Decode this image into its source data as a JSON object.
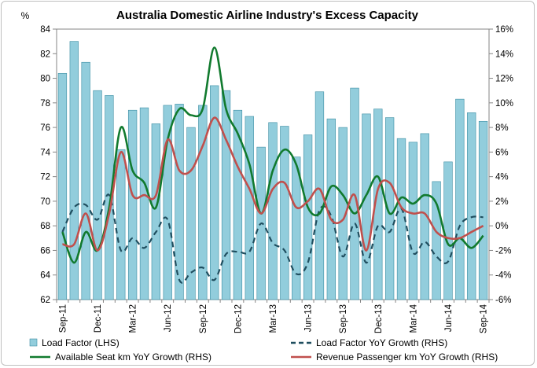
{
  "chart_data": {
    "type": "bar",
    "title": "Australia Domestic Airline Industry's Excess Capacity",
    "left_axis": {
      "unit_label": "%",
      "ylim": [
        62,
        84
      ],
      "ticks": [
        62,
        64,
        66,
        68,
        70,
        72,
        74,
        76,
        78,
        80,
        82,
        84
      ]
    },
    "right_axis": {
      "ylim": [
        -6,
        16
      ],
      "ticks": [
        "-6%",
        "-4%",
        "-2%",
        "0%",
        "2%",
        "4%",
        "6%",
        "8%",
        "10%",
        "12%",
        "14%",
        "16%"
      ]
    },
    "x_tick_labels": [
      "Sep-11",
      "Dec-11",
      "Mar-12",
      "Jun-12",
      "Sep-12",
      "Dec-12",
      "Mar-13",
      "Jun-13",
      "Sep-13",
      "Dec-13",
      "Mar-14",
      "Jun-14",
      "Sep-14"
    ],
    "x_tick_every": 3,
    "legend_position": "bottom",
    "series": [
      {
        "name": "Load Factor (LHS)",
        "type": "bar",
        "axis": "left",
        "color": "#92cddc",
        "values": [
          80.4,
          83.0,
          81.3,
          79.0,
          78.6,
          74.2,
          77.4,
          77.6,
          76.3,
          77.8,
          77.9,
          76.0,
          77.8,
          79.4,
          79.0,
          77.4,
          76.9,
          74.4,
          76.4,
          76.1,
          73.6,
          75.4,
          78.9,
          76.7,
          76.0,
          79.2,
          77.1,
          77.5,
          76.8,
          75.1,
          74.8,
          75.5,
          71.6,
          73.2,
          78.3,
          77.2,
          76.5
        ]
      },
      {
        "name": "Load Factor YoY Growth (RHS)",
        "type": "line",
        "axis": "right",
        "style": "dashed",
        "color": "#1f4e5f",
        "values": [
          -0.5,
          1.5,
          1.7,
          0.5,
          2.5,
          -2.0,
          -1.0,
          -1.8,
          -0.5,
          0.5,
          -4.4,
          -3.8,
          -3.4,
          -4.4,
          -2.3,
          -2.1,
          -2.1,
          0.2,
          -1.4,
          -2.0,
          -3.9,
          -3.0,
          1.3,
          0.8,
          -2.5,
          0.2,
          -3.0,
          0.0,
          -0.5,
          1.4,
          -2.2,
          -1.3,
          -2.5,
          -2.9,
          0.0,
          0.7,
          0.7
        ]
      },
      {
        "name": "Available Seat km YoY Growth (RHS)",
        "type": "line",
        "axis": "right",
        "style": "solid",
        "color": "#117a2e",
        "values": [
          -0.5,
          -3.0,
          -0.5,
          -2.0,
          1.5,
          8.0,
          4.5,
          3.5,
          1.5,
          7.0,
          9.5,
          9.0,
          9.5,
          14.5,
          9.5,
          7.5,
          5.0,
          1.0,
          4.5,
          6.2,
          5.0,
          1.5,
          1.0,
          3.2,
          2.5,
          1.0,
          2.5,
          4.0,
          1.0,
          2.3,
          1.8,
          2.5,
          1.8,
          -1.5,
          -1.0,
          -1.8,
          -0.8
        ]
      },
      {
        "name": "Revenue Passenger km YoY Growth (RHS)",
        "type": "line",
        "axis": "right",
        "style": "solid",
        "color": "#c0504d",
        "values": [
          -1.5,
          -1.5,
          1.0,
          -2.0,
          1.0,
          6.0,
          2.5,
          2.5,
          2.5,
          7.0,
          4.5,
          4.5,
          6.5,
          8.8,
          7.0,
          4.8,
          3.0,
          1.0,
          3.0,
          3.5,
          1.5,
          2.0,
          3.0,
          0.5,
          0.5,
          2.5,
          -2.0,
          3.0,
          3.5,
          1.5,
          1.0,
          1.0,
          -0.5,
          -1.0,
          -1.0,
          -0.5,
          0.0
        ]
      }
    ]
  }
}
